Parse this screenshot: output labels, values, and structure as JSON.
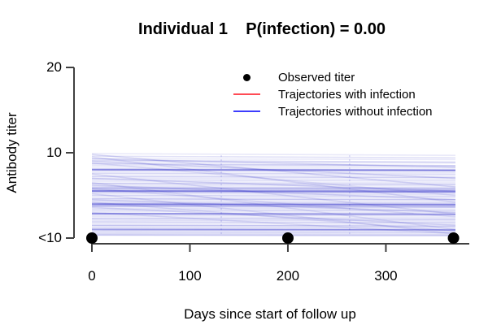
{
  "chart_data": {
    "type": "line",
    "title": "Individual 1    P(infection) = 0.00",
    "individual": 1,
    "p_infection": 0.0,
    "xlabel": "Days since start of follow up",
    "ylabel": "Antibody titer",
    "x_ticks": [
      0,
      100,
      200,
      300
    ],
    "y_ticks": [
      {
        "label": "20",
        "t": 2
      },
      {
        "label": "10",
        "t": 1
      },
      {
        "label": "<10",
        "t": 0
      }
    ],
    "xlim": [
      0,
      371
    ],
    "grid": false,
    "legend_position": "top-right-inside",
    "legend": [
      {
        "label": "Observed titer",
        "marker": "point",
        "color": "#000000"
      },
      {
        "label": "Trajectories with infection",
        "marker": "line",
        "color": "#ff4b55"
      },
      {
        "label": "Trajectories without infection",
        "marker": "line",
        "color": "#3d3dfd"
      }
    ],
    "observed": [
      {
        "day": 0,
        "titer": "<10"
      },
      {
        "day": 200,
        "titer": "<10"
      },
      {
        "day": 369,
        "titer": "<10"
      }
    ],
    "trajectory_color": "#2a2ac8",
    "n_trajectories": 70,
    "trajectories_note": "posterior draws without infection; [titer_start_steps, titer_end_steps, opacity]; steps: 0=<10, 1=10, 2=20",
    "trajectories": [
      [
        0.99,
        0.97,
        0.1
      ],
      [
        0.96,
        0.94,
        0.14
      ],
      [
        0.93,
        0.92,
        0.1
      ],
      [
        0.91,
        0.89,
        0.18
      ],
      [
        0.89,
        0.88,
        0.1
      ],
      [
        0.87,
        0.85,
        0.22
      ],
      [
        0.85,
        0.84,
        0.12
      ],
      [
        0.83,
        0.82,
        0.1
      ],
      [
        0.81,
        0.8,
        0.26
      ],
      [
        0.8,
        0.79,
        0.3
      ],
      [
        0.78,
        0.77,
        0.12
      ],
      [
        0.76,
        0.75,
        0.18
      ],
      [
        0.74,
        0.73,
        0.1
      ],
      [
        0.72,
        0.71,
        0.22
      ],
      [
        0.7,
        0.69,
        0.12
      ],
      [
        0.68,
        0.67,
        0.16
      ],
      [
        0.66,
        0.65,
        0.1
      ],
      [
        0.64,
        0.63,
        0.26
      ],
      [
        0.62,
        0.61,
        0.12
      ],
      [
        0.6,
        0.59,
        0.2
      ],
      [
        0.585,
        0.575,
        0.34
      ],
      [
        0.57,
        0.56,
        0.22
      ],
      [
        0.55,
        0.54,
        0.38
      ],
      [
        0.54,
        0.53,
        0.26
      ],
      [
        0.52,
        0.51,
        0.14
      ],
      [
        0.5,
        0.49,
        0.2
      ],
      [
        0.48,
        0.47,
        0.12
      ],
      [
        0.46,
        0.45,
        0.26
      ],
      [
        0.44,
        0.43,
        0.14
      ],
      [
        0.42,
        0.41,
        0.2
      ],
      [
        0.4,
        0.39,
        0.3
      ],
      [
        0.385,
        0.375,
        0.38
      ],
      [
        0.37,
        0.36,
        0.26
      ],
      [
        0.35,
        0.34,
        0.14
      ],
      [
        0.33,
        0.32,
        0.22
      ],
      [
        0.31,
        0.3,
        0.12
      ],
      [
        0.29,
        0.28,
        0.3
      ],
      [
        0.27,
        0.26,
        0.18
      ],
      [
        0.25,
        0.24,
        0.12
      ],
      [
        0.23,
        0.22,
        0.26
      ],
      [
        0.21,
        0.2,
        0.16
      ],
      [
        0.19,
        0.18,
        0.22
      ],
      [
        0.17,
        0.16,
        0.12
      ],
      [
        0.15,
        0.14,
        0.28
      ],
      [
        0.13,
        0.12,
        0.18
      ],
      [
        0.11,
        0.1,
        0.24
      ],
      [
        0.09,
        0.085,
        0.16
      ],
      [
        0.07,
        0.065,
        0.22
      ],
      [
        0.05,
        0.045,
        0.18
      ],
      [
        0.035,
        0.03,
        0.26
      ],
      [
        0.555,
        0.55,
        0.45
      ],
      [
        0.4,
        0.395,
        0.45
      ],
      [
        0.8,
        0.795,
        0.4
      ],
      [
        0.285,
        0.28,
        0.42
      ],
      [
        0.1,
        0.095,
        0.4
      ],
      [
        0.98,
        0.6,
        0.16
      ],
      [
        0.95,
        0.42,
        0.14
      ],
      [
        0.9,
        0.7,
        0.16
      ],
      [
        0.88,
        0.5,
        0.12
      ],
      [
        0.75,
        0.28,
        0.14
      ],
      [
        0.7,
        0.55,
        0.18
      ],
      [
        0.65,
        0.1,
        0.12
      ],
      [
        0.62,
        0.45,
        0.16
      ],
      [
        0.58,
        0.25,
        0.12
      ],
      [
        0.52,
        0.05,
        0.12
      ],
      [
        0.45,
        0.3,
        0.16
      ],
      [
        0.42,
        0.08,
        0.12
      ],
      [
        0.93,
        0.83,
        0.18
      ],
      [
        0.36,
        0.15,
        0.14
      ],
      [
        0.3,
        0.05,
        0.12
      ]
    ],
    "vertical_marks_days": [
      132,
      263
    ],
    "axis_color": "#404040",
    "point_color": "#000000"
  }
}
